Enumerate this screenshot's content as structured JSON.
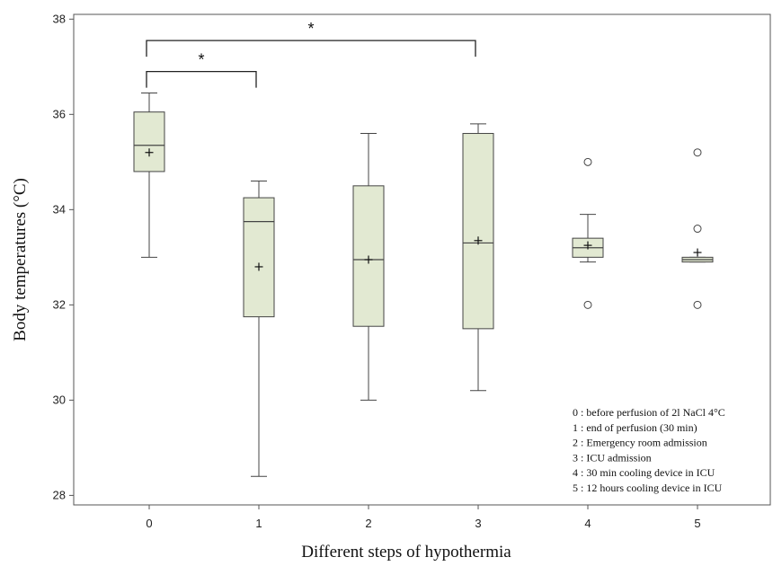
{
  "chart_data": {
    "type": "boxplot",
    "xlabel": "Different steps of hypothermia",
    "ylabel": "Body temperatures (°C)",
    "ylim": [
      27.8,
      38.1
    ],
    "y_ticks": [
      28,
      30,
      32,
      34,
      36,
      38
    ],
    "categories": [
      "0",
      "1",
      "2",
      "3",
      "4",
      "5"
    ],
    "box_color": "#e2e9d2",
    "boxes": [
      {
        "category": "0",
        "whisker_low": 33.0,
        "q1": 34.8,
        "median": 35.35,
        "q3": 36.05,
        "whisker_high": 36.45,
        "mean": 35.2,
        "outliers": []
      },
      {
        "category": "1",
        "whisker_low": 28.4,
        "q1": 31.75,
        "median": 33.75,
        "q3": 34.25,
        "whisker_high": 34.6,
        "mean": 32.8,
        "outliers": []
      },
      {
        "category": "2",
        "whisker_low": 30.0,
        "q1": 31.55,
        "median": 32.95,
        "q3": 34.5,
        "whisker_high": 35.6,
        "mean": 32.95,
        "outliers": []
      },
      {
        "category": "3",
        "whisker_low": 30.2,
        "q1": 31.5,
        "median": 33.3,
        "q3": 35.6,
        "whisker_high": 35.8,
        "mean": 33.35,
        "outliers": []
      },
      {
        "category": "4",
        "whisker_low": 32.9,
        "q1": 33.0,
        "median": 33.2,
        "q3": 33.4,
        "whisker_high": 33.9,
        "mean": 33.25,
        "outliers": [
          35.0,
          32.0
        ]
      },
      {
        "category": "5",
        "whisker_low": 32.9,
        "q1": 32.9,
        "median": 32.95,
        "q3": 33.0,
        "whisker_high": 33.0,
        "mean": 33.1,
        "outliers": [
          35.2,
          33.6,
          32.0
        ]
      }
    ],
    "significance": [
      {
        "from": "0",
        "to": "1",
        "label": "*",
        "level": 36.9
      },
      {
        "from": "0",
        "to": "3",
        "label": "*",
        "level": 37.55
      }
    ],
    "legend_position": "bottom-right",
    "legend": [
      "0 : before perfusion of 2l NaCl 4°C",
      "1 : end of perfusion (30 min)",
      "2 : Emergency room admission",
      "3 : ICU admission",
      "4 : 30 min cooling device in ICU",
      "5 : 12 hours cooling device in ICU"
    ]
  }
}
